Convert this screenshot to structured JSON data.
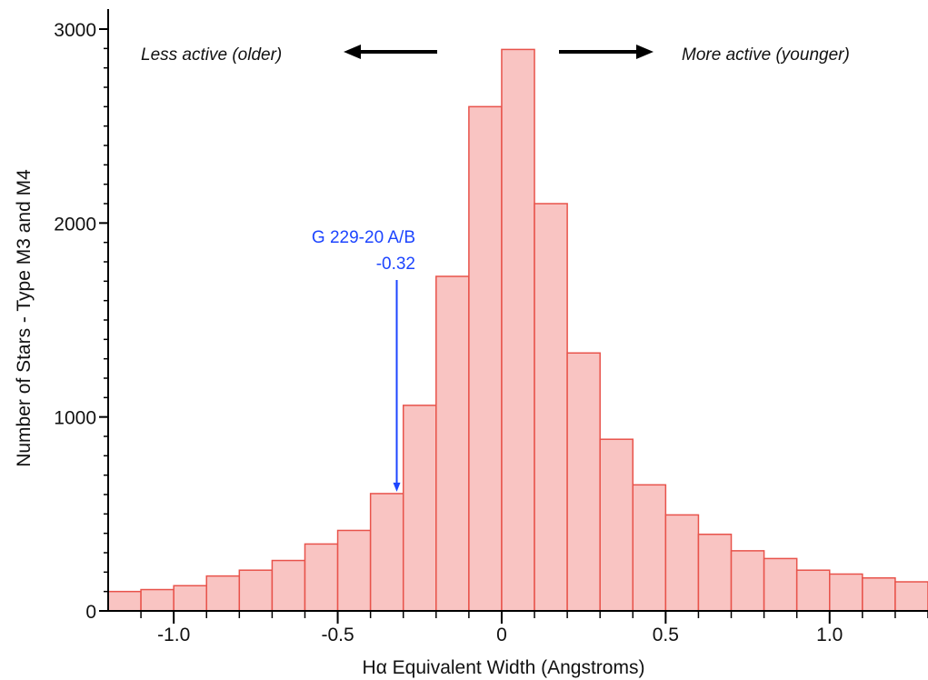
{
  "chart_data": {
    "type": "bar",
    "bin_width": 0.1,
    "x": [
      -1.15,
      -1.05,
      -0.95,
      -0.85,
      -0.75,
      -0.65,
      -0.55,
      -0.45,
      -0.35,
      -0.25,
      -0.15,
      -0.05,
      0.05,
      0.15,
      0.25,
      0.35,
      0.45,
      0.55,
      0.65,
      0.75,
      0.85,
      0.95,
      1.05,
      1.15,
      1.25
    ],
    "values": [
      100,
      110,
      130,
      180,
      210,
      260,
      345,
      415,
      605,
      1060,
      1725,
      2600,
      2895,
      2100,
      1330,
      885,
      650,
      495,
      395,
      310,
      270,
      210,
      190,
      170,
      150
    ],
    "xlim": [
      -1.2,
      1.3
    ],
    "ylim": [
      0,
      3000
    ],
    "xticks": [
      -1.0,
      -0.5,
      0.0,
      0.5,
      1.0
    ],
    "xtick_labels": [
      "-1.0",
      "-0.5",
      "0",
      "0.5",
      "1.0"
    ],
    "yticks": [
      0,
      1000,
      2000,
      3000
    ],
    "ytick_labels": [
      "0",
      "1000",
      "2000",
      "3000"
    ],
    "xlabel": "Hα Equivalent Width (Angstroms)",
    "ylabel": "Number of Stars - Type M3 and M4",
    "grid": false,
    "bar_fill": "#f9c4c2",
    "bar_edge": "#e8534b",
    "annotations": {
      "left_note": "Less active (older)",
      "right_note": "More active (younger)",
      "marker_label": "G 229-20 A/B",
      "marker_value_label": "-0.32",
      "marker_x": -0.32,
      "marker_color": "#1d45ff"
    }
  }
}
